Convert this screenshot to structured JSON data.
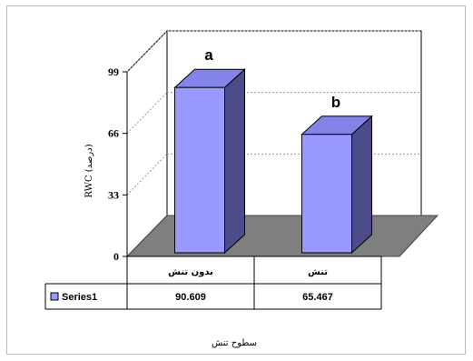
{
  "chart_data": {
    "type": "bar",
    "categories": [
      "بدون تنش",
      "تنش"
    ],
    "series": [
      {
        "name": "Series1",
        "values": [
          90.609,
          65.467
        ],
        "value_labels": [
          "90.609",
          "65.467"
        ]
      }
    ],
    "annotations": [
      "a",
      "b"
    ],
    "ylabel": "RWC (درصد)",
    "xlabel": "سطوح تنش",
    "ylim": [
      0,
      99
    ],
    "yticks": [
      0,
      33,
      66,
      99
    ],
    "grid": true,
    "legend": "data-table-left",
    "colors": {
      "bar_front": "#9999ff",
      "bar_side": "#4c4c8a",
      "bar_top": "#8484e8",
      "floor": "#7f7f7f",
      "grid": "#9a9a9a"
    }
  }
}
